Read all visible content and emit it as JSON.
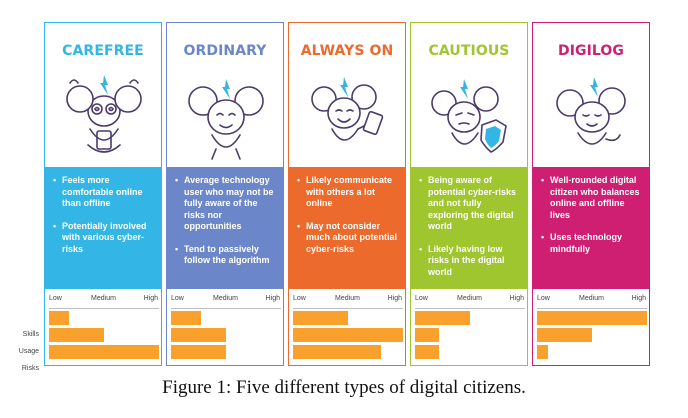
{
  "scale_labels": {
    "low": "Low",
    "medium": "Medium",
    "high": "High"
  },
  "row_labels": {
    "skills": "Skills",
    "usage": "Usage",
    "risks": "Risks"
  },
  "caption": "Figure 1: Five different types of digital citizens.",
  "types": [
    {
      "title": "CAREFREE",
      "color": "#33b6e6",
      "bullets": [
        "Feels more comfortable online than offline",
        "Potentially involved with various cyber-risks"
      ],
      "levels": {
        "skills": 0.18,
        "usage": 0.5,
        "risks": 1.0
      }
    },
    {
      "title": "ORDINARY",
      "color": "#6b86c9",
      "bullets": [
        "Average technology user who may not be fully aware of the risks nor opportunities",
        "Tend to passively follow the algorithm"
      ],
      "levels": {
        "skills": 0.27,
        "usage": 0.5,
        "risks": 0.5
      }
    },
    {
      "title": "ALWAYS ON",
      "color": "#ed6a2d",
      "bullets": [
        "Likely communicate with others a lot online",
        "May not consider much about potential cyber-risks"
      ],
      "levels": {
        "skills": 0.5,
        "usage": 1.0,
        "risks": 0.8
      }
    },
    {
      "title": "CAUTIOUS",
      "color": "#9fc52f",
      "bullets": [
        "Being aware of potential cyber-risks and not fully exploring the digital world",
        "Likely having low risks in the digital world"
      ],
      "levels": {
        "skills": 0.5,
        "usage": 0.22,
        "risks": 0.22
      }
    },
    {
      "title": "DIGILOG",
      "color": "#cf1f73",
      "bullets": [
        "Well-rounded digital citizen who balances online and offline lives",
        "Uses technology mindfully"
      ],
      "levels": {
        "skills": 1.0,
        "usage": 0.5,
        "risks": 0.1
      }
    }
  ]
}
